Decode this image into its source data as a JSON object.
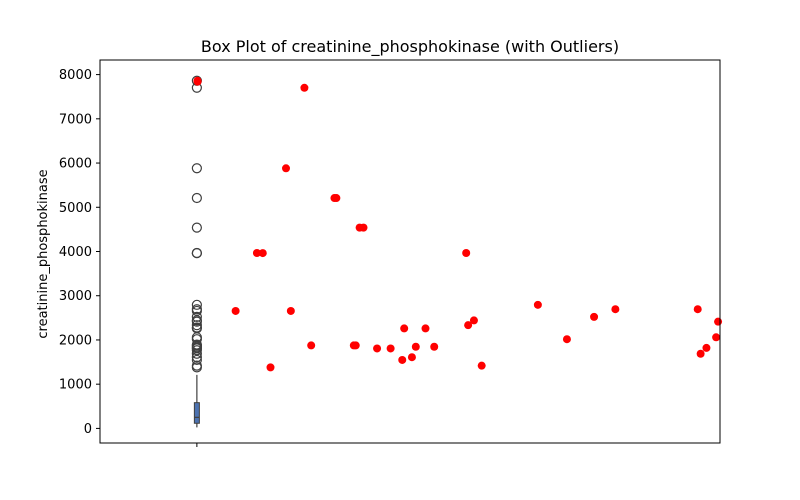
{
  "chart_data": {
    "type": "box+scatter",
    "title": "Box Plot of creatinine_phosphokinase (with Outliers)",
    "xlabel": "",
    "ylabel": "creatinine_phosphokinase",
    "ylim": [
      -330,
      8330
    ],
    "yticks": [
      0,
      1000,
      2000,
      3000,
      4000,
      5000,
      6000,
      7000,
      8000
    ],
    "grid": false,
    "box": {
      "whisker_low": 23,
      "q1": 116,
      "median": 250,
      "q3": 582,
      "whisker_high": 1211,
      "color": "#4c72b0",
      "edge_color": "#3f3f3f"
    },
    "box_outliers": [
      7861,
      7702,
      5882,
      5209,
      4540,
      3966,
      3964,
      2794,
      2695,
      2656,
      2522,
      2442,
      2413,
      2334,
      2281,
      2261,
      2060,
      2017,
      1896,
      1876,
      1846,
      1820,
      1808,
      1767,
      1688,
      1610,
      1548,
      1419,
      1380
    ],
    "outlier_points": {
      "color": "#ff0000",
      "x": [
        0.003,
        0.004,
        0.2,
        0.38,
        0.31,
        0.34,
        0.555,
        0.46,
        0.72,
        0.81,
        1.11,
        1.06,
        1.0,
        1.225,
        1.18,
        0.485,
        0.84,
        1.39,
        0.93,
        0.59,
        1.07,
        1.47,
        0.71,
        1.43,
        1.4,
        0.86,
        0.82,
        1.13,
        1.91,
        1.76,
        2.05,
        2.16,
        2.6,
        2.63,
        2.585,
        2.68,
        2.69
      ],
      "y": [
        7861,
        7840,
        2656,
        1380,
        3966,
        3964,
        7702,
        5882,
        5209,
        1876,
        1610,
        1548,
        1808,
        1846,
        2261,
        2656,
        4540,
        3966,
        1808,
        1876,
        2261,
        1419,
        5209,
        2442,
        2334,
        4540,
        1876,
        1846,
        2017,
        2794,
        2522,
        2695,
        1688,
        1820,
        2695,
        2060,
        2413
      ]
    }
  }
}
